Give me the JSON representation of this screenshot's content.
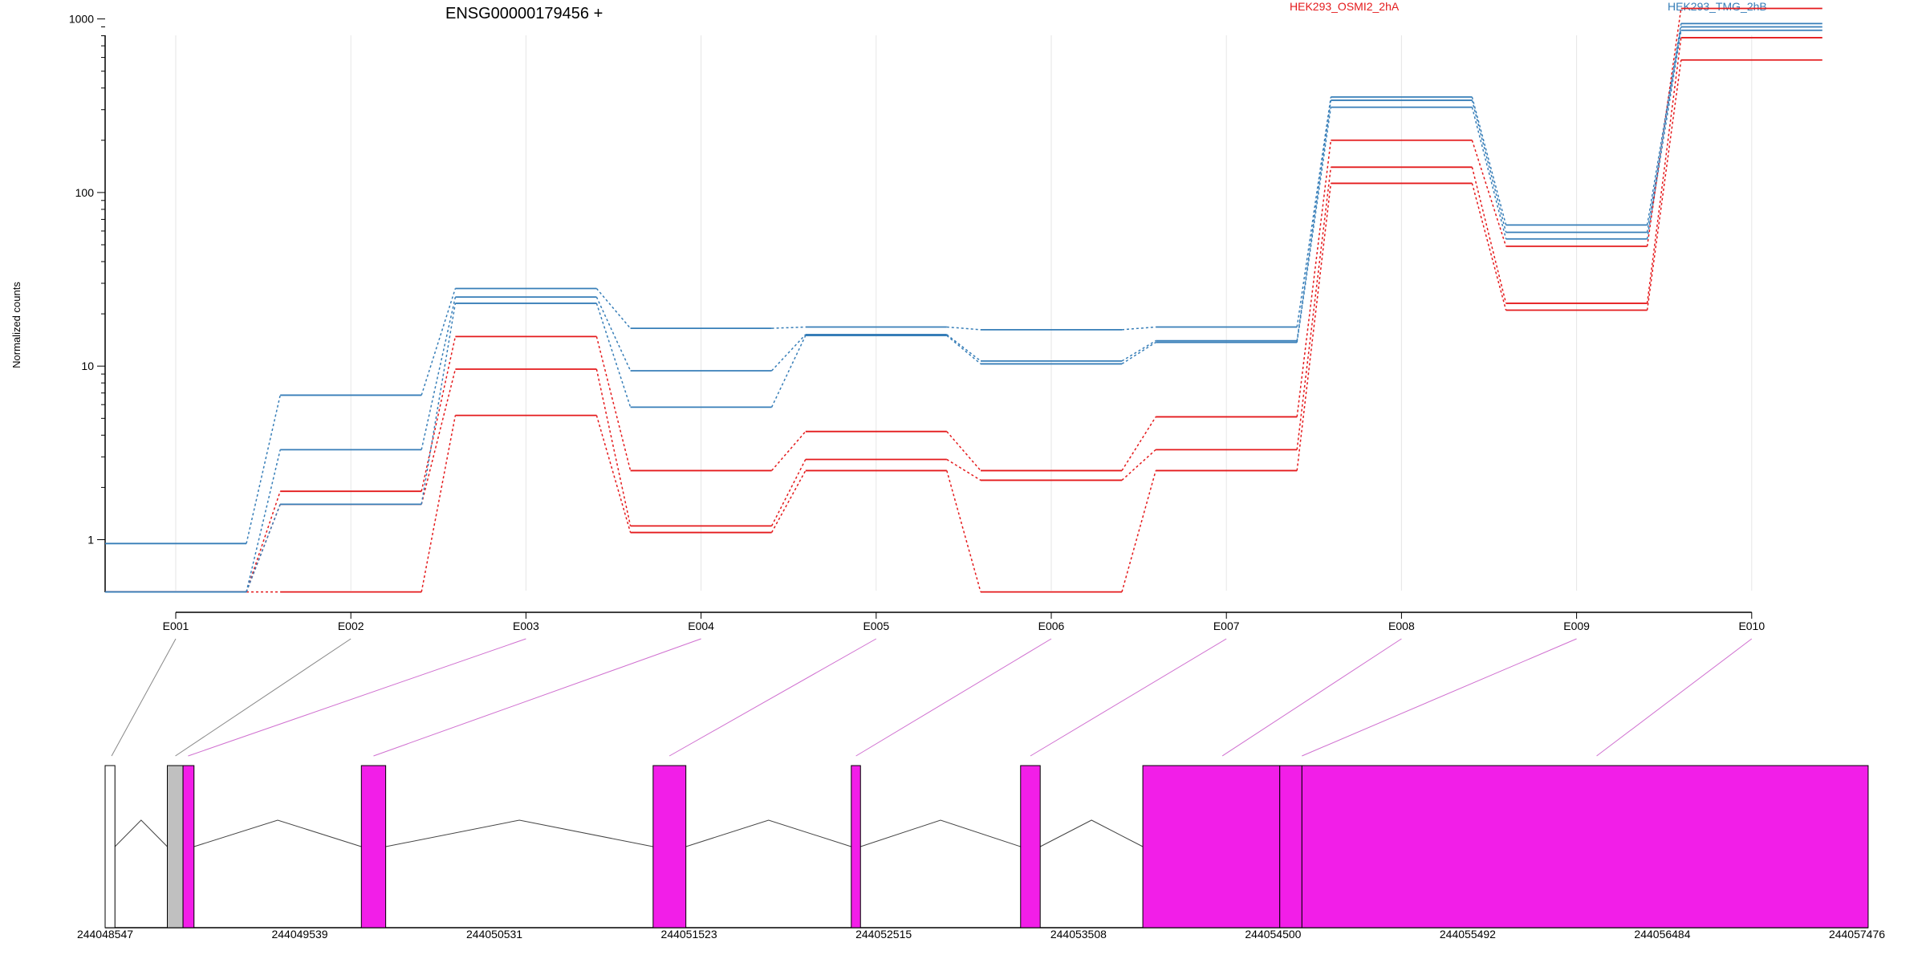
{
  "chart_data": {
    "type": "line",
    "title": "ENSG00000179456 +",
    "ylabel": "Normalized counts",
    "xlabel": "",
    "y_scale": "log",
    "y_ticks": [
      "1",
      "10",
      "100",
      "1000"
    ],
    "y_tick_values": [
      1,
      10,
      100,
      1000
    ],
    "ylim": [
      0.5,
      2000
    ],
    "grid": "vertical",
    "legend_position": "top",
    "categories": [
      "E001",
      "E002",
      "E003",
      "E004",
      "E005",
      "E006",
      "E007",
      "E008",
      "E009",
      "E010"
    ],
    "groups": [
      {
        "name": "HEK293_OSMI2_2hA",
        "color": "#e41a1c"
      },
      {
        "name": "HEK293_TMG_2hB",
        "color": "#377eb8"
      }
    ],
    "series": [
      {
        "group": 0,
        "values": [
          0.5,
          0.5,
          5.2,
          1.1,
          2.5,
          0.5,
          2.5,
          113,
          21,
          580
        ]
      },
      {
        "group": 0,
        "values": [
          0.5,
          1.6,
          9.6,
          1.2,
          2.9,
          2.2,
          3.3,
          140,
          23,
          780
        ]
      },
      {
        "group": 0,
        "values": [
          0.5,
          1.9,
          14.8,
          2.5,
          4.2,
          2.5,
          5.1,
          200,
          49,
          1150
        ]
      },
      {
        "group": 1,
        "values": [
          0.5,
          1.6,
          23,
          5.8,
          15,
          10.3,
          13.7,
          310,
          54,
          860
        ]
      },
      {
        "group": 1,
        "values": [
          0.5,
          3.3,
          25,
          9.4,
          15.2,
          10.7,
          14,
          340,
          59,
          900
        ]
      },
      {
        "group": 1,
        "values": [
          0.95,
          6.8,
          28,
          16.5,
          16.8,
          16.2,
          16.8,
          355,
          65,
          940
        ]
      }
    ],
    "gene_model": {
      "coordinate_ticks": [
        "244048547",
        "244049539",
        "244050531",
        "244051523",
        "244052515",
        "244053508",
        "244054500",
        "244055492",
        "244056484",
        "244057476"
      ],
      "coordinate_values": [
        244048547,
        244049539,
        244050531,
        244051523,
        244052515,
        244053508,
        244054500,
        244055492,
        244056484,
        244057476
      ],
      "exon_color": "#f21ee8",
      "non_tested_color": "#c0c0c0",
      "blocks": [
        {
          "start": 244048547,
          "end": 244048597,
          "kind": "unused"
        },
        {
          "start": 244048864,
          "end": 244048944,
          "kind": "non-tested"
        },
        {
          "start": 244048944,
          "end": 244049000,
          "kind": "exon"
        },
        {
          "start": 244049853,
          "end": 244049977,
          "kind": "exon"
        },
        {
          "start": 244051340,
          "end": 244051507,
          "kind": "exon"
        },
        {
          "start": 244052350,
          "end": 244052397,
          "kind": "exon"
        },
        {
          "start": 244053213,
          "end": 244053313,
          "kind": "exon"
        },
        {
          "start": 244053836,
          "end": 244054534,
          "kind": "exon"
        },
        {
          "start": 244054534,
          "end": 244054647,
          "kind": "exon"
        },
        {
          "start": 244054647,
          "end": 244057533,
          "kind": "exon"
        }
      ],
      "exon_mapping": [
        {
          "exon": "E001",
          "coordinate": 244048580,
          "color": "#888888"
        },
        {
          "exon": "E002",
          "coordinate": 244048905,
          "color": "#888888"
        },
        {
          "exon": "E003",
          "coordinate": 244048970,
          "color": "#d070d0"
        },
        {
          "exon": "E004",
          "coordinate": 244049915,
          "color": "#d070d0"
        },
        {
          "exon": "E005",
          "coordinate": 244051423,
          "color": "#d070d0"
        },
        {
          "exon": "E006",
          "coordinate": 244052374,
          "color": "#d070d0"
        },
        {
          "exon": "E007",
          "coordinate": 244053263,
          "color": "#d070d0"
        },
        {
          "exon": "E008",
          "coordinate": 244054241,
          "color": "#d070d0"
        },
        {
          "exon": "E009",
          "coordinate": 244054647,
          "color": "#d070d0"
        },
        {
          "exon": "E010",
          "coordinate": 244056149,
          "color": "#d070d0"
        }
      ]
    }
  }
}
